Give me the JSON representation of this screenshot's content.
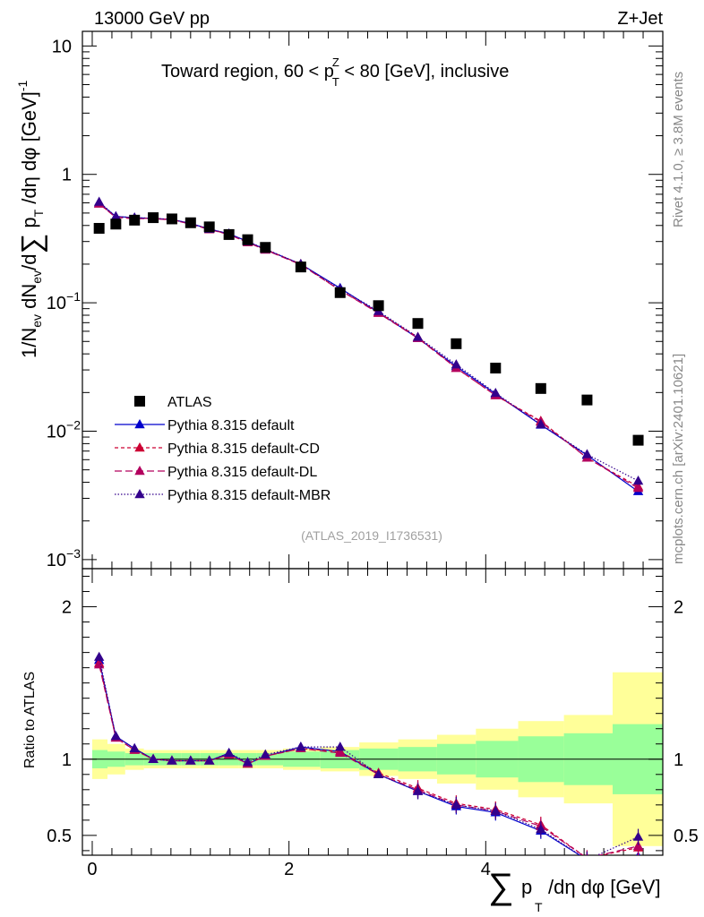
{
  "header": {
    "left": "13000 GeV pp",
    "right": "Z+Jet",
    "title_main": "Toward region, 60 < p",
    "title_sup": "Z",
    "title_sub": "T",
    "title_tail": " < 80 [GeV], inclusive",
    "watermark": "(ATLAS_2019_I1736531)"
  },
  "side": {
    "rivet": "Rivet 4.1.0, ≥ 3.8M events",
    "mcplots": "mcplots.cern.ch [arXiv:2401.10621]"
  },
  "axes": {
    "ylabel_main": "1/N_ev dN_ev/d∑p_T/dη dφ [GeV]^-1",
    "ylabel_ratio": "Ratio to ATLAS",
    "xlabel": "∑p_T/dη dφ [GeV]",
    "xticks": [
      "0",
      "2",
      "4"
    ],
    "yticks_main": [
      "10",
      "1",
      "10^-1",
      "10^-2",
      "10^-3"
    ],
    "yticks_ratio": [
      "2",
      "1",
      "0.5"
    ]
  },
  "legend": [
    {
      "label": "ATLAS",
      "color": "#000000",
      "marker": "square",
      "dash": ""
    },
    {
      "label": "Pythia 8.315 default",
      "color": "#0000cc",
      "marker": "triangle",
      "dash": ""
    },
    {
      "label": "Pythia 8.315 default-CD",
      "color": "#cc0033",
      "marker": "triangle",
      "dash": "4,3"
    },
    {
      "label": "Pythia 8.315 default-DL",
      "color": "#b3005e",
      "marker": "triangle",
      "dash": "8,4"
    },
    {
      "label": "Pythia 8.315 default-MBR",
      "color": "#33008c",
      "marker": "triangle",
      "dash": "1.5,2"
    }
  ],
  "chart_data": {
    "type": "scatter",
    "title": "Toward region, 60 < pT^Z < 80 [GeV], inclusive",
    "xlabel": "∑pT/dη dφ [GeV]",
    "ylabel": "1/Nev dNev/d∑pT/dη dφ [GeV]^-1",
    "xlim": [
      -0.1,
      5.8
    ],
    "ylim": [
      0.00085,
      13
    ],
    "yscale": "log",
    "ratio_ylim": [
      0.37,
      2.25
    ],
    "x": [
      0.07,
      0.24,
      0.43,
      0.62,
      0.81,
      1.0,
      1.19,
      1.39,
      1.58,
      1.76,
      2.12,
      2.52,
      2.91,
      3.31,
      3.7,
      4.1,
      4.56,
      5.03,
      5.55
    ],
    "atlas": [
      0.38,
      0.41,
      0.44,
      0.46,
      0.45,
      0.42,
      0.39,
      0.34,
      0.31,
      0.27,
      0.19,
      0.12,
      0.095,
      0.069,
      0.048,
      0.031,
      0.0215,
      0.0175,
      0.0085
    ],
    "atlas_band_inner": [
      0.06,
      0.05,
      0.04,
      0.04,
      0.04,
      0.04,
      0.04,
      0.04,
      0.04,
      0.04,
      0.05,
      0.06,
      0.07,
      0.08,
      0.1,
      0.12,
      0.15,
      0.17,
      0.23
    ],
    "atlas_band_outer": [
      0.13,
      0.1,
      0.07,
      0.06,
      0.06,
      0.06,
      0.06,
      0.06,
      0.06,
      0.06,
      0.07,
      0.08,
      0.11,
      0.13,
      0.16,
      0.2,
      0.25,
      0.29,
      0.57
    ],
    "series": [
      {
        "name": "Pythia 8.315 default",
        "values": [
          0.6,
          0.47,
          0.46,
          0.455,
          0.445,
          0.415,
          0.375,
          0.345,
          0.3,
          0.26,
          0.2,
          0.13,
          0.084,
          0.053,
          0.032,
          0.0195,
          0.0112,
          0.0065,
          0.0034
        ]
      },
      {
        "name": "Pythia 8.315 default-CD",
        "values": [
          0.59,
          0.465,
          0.455,
          0.455,
          0.445,
          0.41,
          0.375,
          0.34,
          0.295,
          0.26,
          0.2,
          0.125,
          0.084,
          0.054,
          0.031,
          0.019,
          0.012,
          0.0062,
          0.0037
        ]
      },
      {
        "name": "Pythia 8.315 default-DL",
        "values": [
          0.59,
          0.462,
          0.452,
          0.452,
          0.442,
          0.41,
          0.372,
          0.34,
          0.295,
          0.258,
          0.198,
          0.125,
          0.083,
          0.053,
          0.031,
          0.019,
          0.0118,
          0.0062,
          0.0036
        ]
      },
      {
        "name": "Pythia 8.315 default-MBR",
        "values": [
          0.61,
          0.47,
          0.46,
          0.455,
          0.445,
          0.415,
          0.375,
          0.345,
          0.3,
          0.262,
          0.2,
          0.128,
          0.086,
          0.054,
          0.033,
          0.0198,
          0.0113,
          0.0066,
          0.0041
        ]
      }
    ],
    "ratios": [
      [
        1.65,
        1.15,
        1.07,
        1.0,
        0.99,
        0.99,
        0.99,
        1.04,
        0.97,
        1.02,
        1.08,
        1.05,
        0.9,
        0.79,
        0.69,
        0.65,
        0.53,
        0.34,
        0.36
      ],
      [
        1.63,
        1.14,
        1.06,
        1.0,
        0.99,
        0.99,
        0.99,
        1.03,
        0.97,
        1.02,
        1.07,
        1.05,
        0.91,
        0.81,
        0.71,
        0.67,
        0.57,
        0.35,
        0.42
      ],
      [
        1.62,
        1.14,
        1.06,
        1.0,
        0.99,
        0.99,
        0.99,
        1.03,
        0.97,
        1.02,
        1.07,
        1.04,
        0.9,
        0.8,
        0.7,
        0.66,
        0.56,
        0.35,
        0.43
      ],
      [
        1.67,
        1.15,
        1.07,
        1.0,
        0.99,
        0.99,
        0.99,
        1.04,
        0.98,
        1.03,
        1.08,
        1.08,
        0.9,
        0.79,
        0.7,
        0.66,
        0.54,
        0.34,
        0.49
      ]
    ]
  }
}
